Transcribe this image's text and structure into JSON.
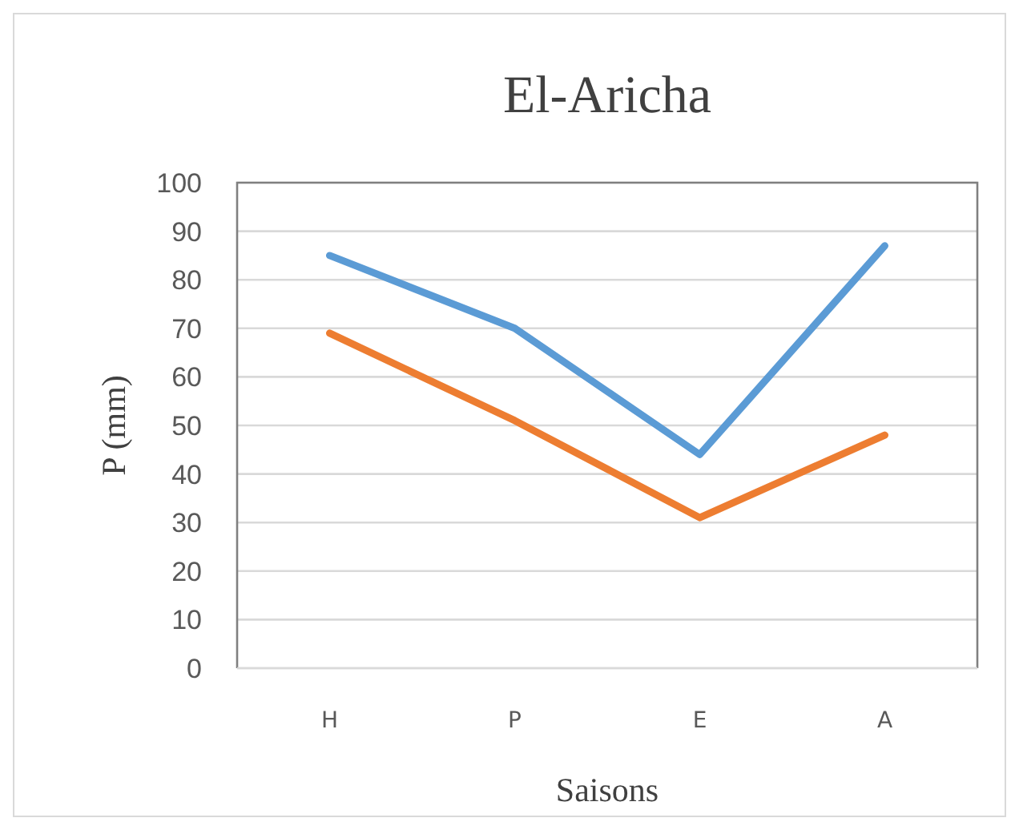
{
  "chart_data": {
    "type": "line",
    "title": "El-Aricha",
    "xlabel": "Saisons",
    "ylabel": "P (mm)",
    "categories": [
      "H",
      "P",
      "E",
      "A"
    ],
    "series": [
      {
        "color": "#5b9bd5",
        "values": [
          85,
          70,
          44,
          87
        ]
      },
      {
        "color": "#ed7d31",
        "values": [
          69,
          51,
          31,
          48
        ]
      }
    ],
    "ylim": [
      0,
      100
    ],
    "yticks": [
      0,
      10,
      20,
      30,
      40,
      50,
      60,
      70,
      80,
      90,
      100
    ],
    "grid": "y",
    "marker": "none",
    "line_style": "solid"
  }
}
